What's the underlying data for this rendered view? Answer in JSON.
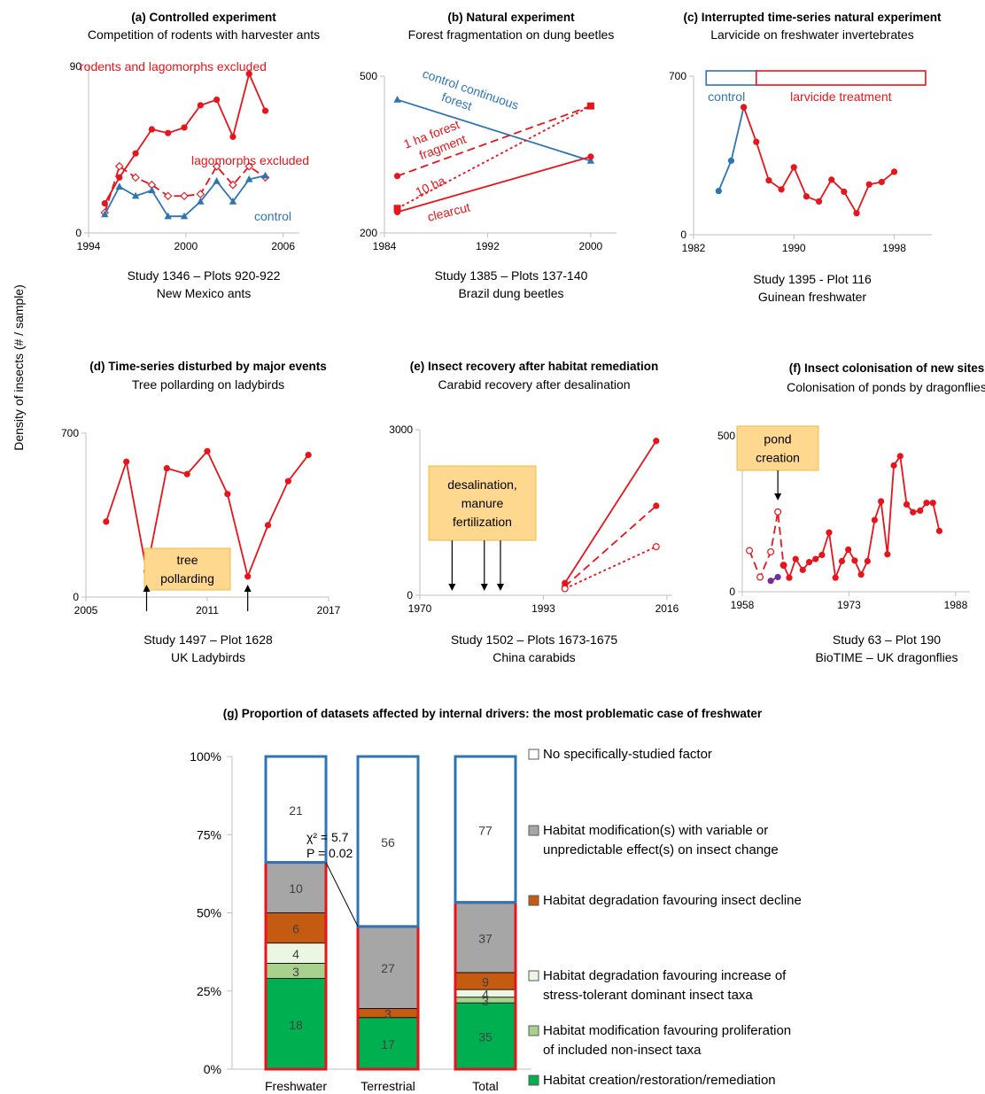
{
  "figure": {
    "ylabel": "Density of insects (# / sample)",
    "colors": {
      "red": "#e8141b",
      "blue": "#2e75b6",
      "purple": "#7030a0",
      "note_fill": "#fed88f",
      "note_stroke": "#f4b942"
    }
  },
  "chart_data": [
    {
      "id": "a",
      "type": "line",
      "title": "(a) Controlled experiment",
      "subtitle": "Competition of rodents with harvester ants",
      "caption": [
        "Study 1346 – Plots 920-922",
        "New Mexico ants"
      ],
      "xlim": [
        1994,
        2007
      ],
      "ylim": [
        0,
        90
      ],
      "xticks": [
        "1994",
        "2000",
        "2006"
      ],
      "yticks": [
        "0",
        "90"
      ],
      "series": [
        {
          "name": "rodents and lagomorphs excluded",
          "color": "#e8141b",
          "dash": "solid",
          "marker": "circle",
          "x": [
            1995,
            1995.9,
            1996.9,
            1997.9,
            1998.9,
            1999.9,
            2000.9,
            2001.9,
            2002.9,
            2003.9,
            2004.9
          ],
          "y": [
            16,
            30,
            43,
            56,
            54,
            57,
            69,
            72,
            52,
            86,
            66
          ]
        },
        {
          "name": "lagomorphs excluded",
          "color": "#e8141b",
          "dash": "dash",
          "marker": "open-diamond",
          "x": [
            1995,
            1995.9,
            1996.9,
            1997.9,
            1998.9,
            1999.9,
            2000.9,
            2001.9,
            2002.9,
            2003.9,
            2004.9
          ],
          "y": [
            11,
            36,
            30,
            26,
            20,
            20,
            21,
            36,
            26,
            36,
            30
          ]
        },
        {
          "name": "control",
          "color": "#2e75b6",
          "dash": "solid",
          "marker": "triangle",
          "x": [
            1995,
            1995.9,
            1996.9,
            1997.9,
            1998.9,
            1999.9,
            2000.9,
            2001.9,
            2002.9,
            2003.9,
            2004.9
          ],
          "y": [
            10,
            25,
            20,
            23,
            9,
            9,
            17,
            28,
            17,
            29,
            31
          ]
        }
      ]
    },
    {
      "id": "b",
      "type": "line",
      "title": "(b) Natural experiment",
      "subtitle": "Forest fragmentation on dung beetles",
      "caption": [
        "Study 1385 – Plots 137-140",
        "Brazil dung beetles"
      ],
      "xlim": [
        1984,
        2002
      ],
      "ylim": [
        200,
        500
      ],
      "xticks": [
        "1984",
        "1992",
        "2000"
      ],
      "yticks": [
        "200",
        "500"
      ],
      "series": [
        {
          "name": "control continuous forest",
          "color": "#2e75b6",
          "dash": "solid",
          "marker": "triangle",
          "x": [
            1985,
            2000
          ],
          "y": [
            455,
            338
          ]
        },
        {
          "name": "1 ha forest fragment",
          "color": "#e8141b",
          "dash": "dash",
          "marker": "circle",
          "x": [
            1985,
            2000
          ],
          "y": [
            309,
            443
          ]
        },
        {
          "name": "10 ha",
          "color": "#e8141b",
          "dash": "dot",
          "marker": "square",
          "x": [
            1985,
            2000
          ],
          "y": [
            247,
            443
          ]
        },
        {
          "name": "clearcut",
          "color": "#e8141b",
          "dash": "solid",
          "marker": "circle",
          "x": [
            1985,
            2000
          ],
          "y": [
            240,
            346
          ]
        }
      ]
    },
    {
      "id": "c",
      "type": "line",
      "title": "(c) Interrupted time-series natural experiment",
      "subtitle": "Larvicide on freshwater invertebrates",
      "caption": [
        "Study 1395 - Plot 116",
        "Guinean freshwater"
      ],
      "xlim": [
        1982,
        2001
      ],
      "ylim": [
        0,
        700
      ],
      "xticks": [
        "1982",
        "1990",
        "1998"
      ],
      "yticks": [
        "0",
        "700"
      ],
      "bands": [
        {
          "label": "control",
          "from": 1983,
          "to": 1987,
          "color": "#2e75b6"
        },
        {
          "label": "larvicide treatment",
          "from": 1987,
          "to": 2000.5,
          "color": "#e8141b"
        }
      ],
      "series": [
        {
          "name": "control",
          "color": "#2e75b6",
          "dash": "solid",
          "marker": "circle",
          "x": [
            1984,
            1985,
            1986
          ],
          "y": [
            193,
            327,
            563
          ]
        },
        {
          "name": "larvicide treatment",
          "color": "#e8141b",
          "dash": "solid",
          "marker": "circle",
          "x": [
            1986,
            1987,
            1988,
            1989,
            1990,
            1991,
            1992,
            1993,
            1994,
            1995,
            1996,
            1997,
            1998
          ],
          "y": [
            563,
            410,
            240,
            200,
            298,
            169,
            147,
            243,
            190,
            95,
            222,
            233,
            278
          ]
        }
      ]
    },
    {
      "id": "d",
      "type": "line",
      "title": "(d) Time-series disturbed by major events",
      "subtitle": "Tree pollarding on ladybirds",
      "caption": [
        "Study 1497 – Plot 1628",
        "UK Ladybirds"
      ],
      "xlim": [
        2005,
        2017
      ],
      "ylim": [
        0,
        700
      ],
      "xticks": [
        "2005",
        "2011",
        "2017"
      ],
      "yticks": [
        "0",
        "700"
      ],
      "annotations": [
        {
          "text": [
            "tree",
            "pollarding"
          ],
          "arrows_at_x": [
            2008,
            2013
          ]
        }
      ],
      "series": [
        {
          "name": "",
          "color": "#e8141b",
          "dash": "solid",
          "marker": "circle",
          "x": [
            2006,
            2007,
            2008,
            2009,
            2010,
            2011,
            2012,
            2013,
            2014,
            2015,
            2016
          ],
          "y": [
            322,
            578,
            110,
            550,
            525,
            623,
            440,
            88,
            307,
            495,
            607
          ]
        }
      ]
    },
    {
      "id": "e",
      "type": "line",
      "title": "(e) Insect recovery after habitat remediation",
      "subtitle": "Carabid recovery after desalination",
      "caption": [
        "Study 1502 – Plots 1673-1675",
        "China carabids"
      ],
      "xlim": [
        1970,
        2017
      ],
      "ylim": [
        0,
        3000
      ],
      "xticks": [
        "1970",
        "1993",
        "2016"
      ],
      "yticks": [
        "0",
        "3000"
      ],
      "annotations": [
        {
          "text": [
            "desalination,",
            "manure",
            "fertilization"
          ],
          "arrows_at_x": [
            1976,
            1982,
            1985
          ]
        }
      ],
      "series": [
        {
          "name": "",
          "color": "#e8141b",
          "dash": "solid",
          "marker": "circle",
          "x": [
            1997,
            2014
          ],
          "y": [
            220,
            2795
          ]
        },
        {
          "name": "",
          "color": "#e8141b",
          "dash": "dash",
          "marker": "circle",
          "x": [
            1997,
            2014
          ],
          "y": [
            160,
            1620
          ]
        },
        {
          "name": "",
          "color": "#e8141b",
          "dash": "dot",
          "marker": "open-circle",
          "x": [
            1997,
            2014
          ],
          "y": [
            120,
            880
          ]
        }
      ]
    },
    {
      "id": "f",
      "type": "line",
      "title": "(f) Insect colonisation of new sites",
      "subtitle": "Colonisation of ponds by dragonflies",
      "caption": [
        "Study 63 – Plot 190",
        "BioTIME – UK dragonflies"
      ],
      "xlim": [
        1958,
        1990
      ],
      "ylim": [
        0,
        500
      ],
      "xticks": [
        "1958",
        "1973",
        "1988"
      ],
      "yticks": [
        "0",
        "500"
      ],
      "annotations": [
        {
          "text": [
            "pond",
            "creation"
          ],
          "arrows_at_x": [
            1963
          ]
        }
      ],
      "series": [
        {
          "name": "",
          "color": "#e8141b",
          "dash": "dash",
          "marker": "open-circle",
          "x": [
            1959,
            1960.5,
            1962,
            1963,
            1963.8
          ],
          "y": [
            132,
            47,
            128,
            256,
            85
          ]
        },
        {
          "name": "",
          "color": "#7030a0",
          "dash": "solid",
          "marker": "circle",
          "x": [
            1962,
            1963
          ],
          "y": [
            35,
            47
          ]
        },
        {
          "name": "",
          "color": "#e8141b",
          "dash": "solid",
          "marker": "circle",
          "x": [
            1963.8,
            1964.6,
            1965.5,
            1966.5,
            1967.4,
            1968.3,
            1969.2,
            1970.2,
            1971.1,
            1972,
            1972.9,
            1973.8,
            1974.7,
            1975.6,
            1976.6,
            1977.5,
            1978.4,
            1979.3,
            1980.2,
            1981.1,
            1982,
            1983,
            1983.9,
            1984.8,
            1985.7,
            1986.6,
            1987.5,
            1988.4
          ],
          "y": [
            85,
            45,
            105,
            70,
            95,
            105,
            118,
            190,
            45,
            98,
            135,
            100,
            55,
            98,
            230,
            290,
            120,
            405,
            435,
            280,
            255,
            260,
            285,
            285,
            195,
            0,
            0,
            0
          ]
        }
      ]
    },
    {
      "id": "g",
      "type": "bar",
      "title": "(g) Proportion of datasets affected by internal drivers: the most problematic case of freshwater",
      "categories": [
        "Freshwater",
        "Terrestrial",
        "Total"
      ],
      "yticks": [
        "0%",
        "25%",
        "50%",
        "75%",
        "100%"
      ],
      "stat": {
        "chi": "χ² = 5.7",
        "p": "P = 0.02"
      },
      "legend": [
        {
          "name": [
            "No specifically-studied factor"
          ],
          "color": "#ffffff"
        },
        {
          "name": [
            "Habitat modification(s) with variable or",
            "unpredictable effect(s) on insect change"
          ],
          "color": "#a6a6a6"
        },
        {
          "name": [
            "Habitat degradation favouring insect decline"
          ],
          "color": "#c55a11"
        },
        {
          "name": [
            "Habitat degradation favouring increase of",
            "stress-tolerant dominant insect taxa"
          ],
          "color": "#ebf7e3"
        },
        {
          "name": [
            "Habitat modification favouring proliferation",
            "of included non-insect taxa"
          ],
          "color": "#a9d18e"
        },
        {
          "name": [
            "Habitat creation/restoration/remediation",
            "favoring insect recovery"
          ],
          "color": "#00b050"
        }
      ],
      "series": [
        {
          "name": "Habitat creation/restoration/remediation favoring insect recovery",
          "color": "#00b050",
          "values": [
            18,
            17,
            35
          ]
        },
        {
          "name": "Habitat modification favouring proliferation of included non-insect taxa",
          "color": "#a9d18e",
          "values": [
            3,
            0,
            3
          ]
        },
        {
          "name": "Habitat degradation favouring increase of stress-tolerant dominant insect taxa",
          "color": "#ebf7e3",
          "values": [
            4,
            0,
            4
          ]
        },
        {
          "name": "Habitat degradation favouring insect decline",
          "color": "#c55a11",
          "values": [
            6,
            3,
            9
          ]
        },
        {
          "name": "Habitat modification(s) with variable or unpredictable effect(s) on insect change",
          "color": "#a6a6a6",
          "values": [
            10,
            27,
            37
          ]
        },
        {
          "name": "No specifically-studied factor",
          "color": "#ffffff",
          "values": [
            21,
            56,
            77
          ]
        }
      ]
    }
  ]
}
